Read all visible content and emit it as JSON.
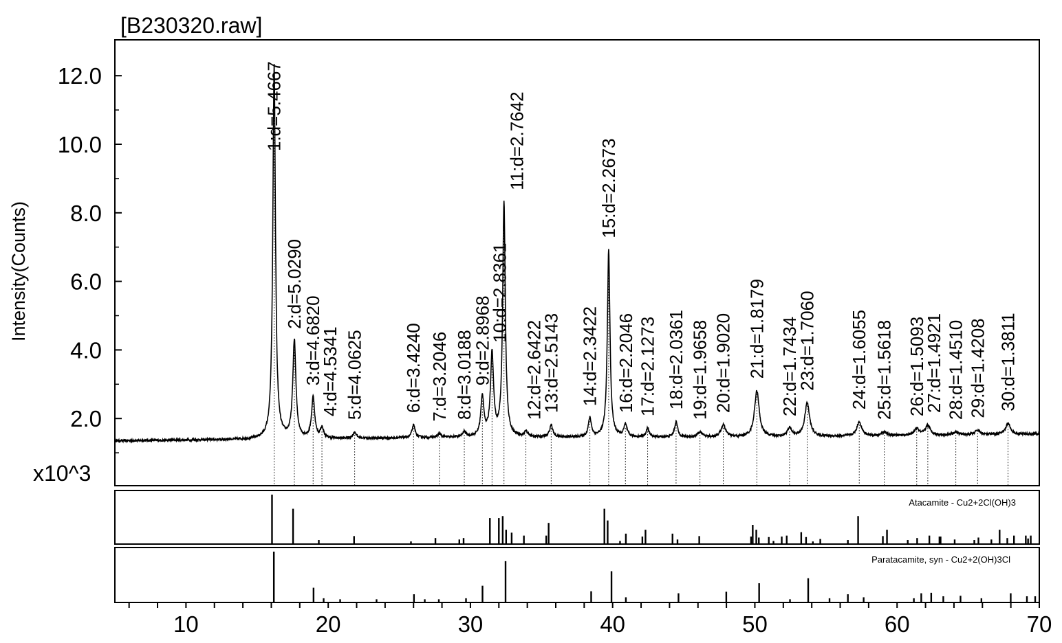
{
  "chart_data": {
    "type": "line",
    "title": "[B230320.raw]",
    "ylabel": "Intensity(Counts)",
    "y_multiplier": "x10^3",
    "xlim": [
      5,
      70
    ],
    "ylim": [
      0,
      13
    ],
    "x_ticks": [
      10,
      20,
      30,
      40,
      50,
      60,
      70
    ],
    "y_ticks": [
      "2.0",
      "4.0",
      "6.0",
      "8.0",
      "10.0",
      "12.0"
    ],
    "grid": false,
    "background": [
      [
        5,
        1.35
      ],
      [
        30,
        1.45
      ],
      [
        50,
        1.45
      ],
      [
        70,
        1.55
      ]
    ],
    "peaks": [
      {
        "label": "1:d=5.4667",
        "two_theta": 16.2,
        "intensity": 12.3
      },
      {
        "label": "2:d=5.0290",
        "two_theta": 17.62,
        "intensity": 4.25
      },
      {
        "label": "3:d=4.6820",
        "two_theta": 18.94,
        "intensity": 2.6
      },
      {
        "label": "4:d=4.5341",
        "two_theta": 19.56,
        "intensity": 1.7
      },
      {
        "label": "5:d=4.0625",
        "two_theta": 21.86,
        "intensity": 1.6
      },
      {
        "label": "6:d=3.4240",
        "two_theta": 26.0,
        "intensity": 1.8
      },
      {
        "label": "7:d=3.2046",
        "two_theta": 27.82,
        "intensity": 1.55
      },
      {
        "label": "8:d=3.0188",
        "two_theta": 29.57,
        "intensity": 1.6
      },
      {
        "label": "9:d=2.8968",
        "two_theta": 30.84,
        "intensity": 2.6
      },
      {
        "label": "10:d=2.8361",
        "two_theta": 31.52,
        "intensity": 3.85
      },
      {
        "label": "11:d=2.7642",
        "two_theta": 32.36,
        "intensity": 8.3
      },
      {
        "label": "12:d=2.6422",
        "two_theta": 33.9,
        "intensity": 1.6
      },
      {
        "label": "13:d=2.5143",
        "two_theta": 35.68,
        "intensity": 1.8
      },
      {
        "label": "14:d=2.3422",
        "two_theta": 38.4,
        "intensity": 2.0
      },
      {
        "label": "15:d=2.2673",
        "two_theta": 39.72,
        "intensity": 6.9
      },
      {
        "label": "16:d=2.2046",
        "two_theta": 40.9,
        "intensity": 1.8
      },
      {
        "label": "17:d=2.1273",
        "two_theta": 42.46,
        "intensity": 1.7
      },
      {
        "label": "18:d=2.0361",
        "two_theta": 44.46,
        "intensity": 1.9
      },
      {
        "label": "19:d=1.9658",
        "two_theta": 46.14,
        "intensity": 1.6
      },
      {
        "label": "20:d=1.9020",
        "two_theta": 47.78,
        "intensity": 1.8
      },
      {
        "label": "21:d=1.8179",
        "two_theta": 50.14,
        "intensity": 2.8
      },
      {
        "label": "22:d=1.7434",
        "two_theta": 52.44,
        "intensity": 1.7
      },
      {
        "label": "23:d=1.7060",
        "two_theta": 53.68,
        "intensity": 2.45
      },
      {
        "label": "24:d=1.6055",
        "two_theta": 57.34,
        "intensity": 1.9
      },
      {
        "label": "25:d=1.5618",
        "two_theta": 59.1,
        "intensity": 1.6
      },
      {
        "label": "26:d=1.5093",
        "two_theta": 61.38,
        "intensity": 1.7
      },
      {
        "label": "27:d=1.4921",
        "two_theta": 62.16,
        "intensity": 1.8
      },
      {
        "label": "28:d=1.4510",
        "two_theta": 64.13,
        "intensity": 1.6
      },
      {
        "label": "29:d=1.4208",
        "two_theta": 65.66,
        "intensity": 1.65
      },
      {
        "label": "30:d=1.3811",
        "two_theta": 67.8,
        "intensity": 1.85
      }
    ],
    "reference_patterns": [
      {
        "name": "Atacamite - Cu2+2Cl(OH)3",
        "sticks": [
          [
            16.05,
            100
          ],
          [
            17.53,
            71
          ],
          [
            19.34,
            7
          ],
          [
            21.82,
            15
          ],
          [
            25.82,
            4
          ],
          [
            27.54,
            11
          ],
          [
            29.22,
            8
          ],
          [
            29.52,
            11
          ],
          [
            31.37,
            52
          ],
          [
            32.0,
            52
          ],
          [
            32.27,
            56
          ],
          [
            32.51,
            28
          ],
          [
            32.9,
            22
          ],
          [
            33.76,
            16
          ],
          [
            35.33,
            16
          ],
          [
            35.5,
            42
          ],
          [
            39.42,
            71
          ],
          [
            39.65,
            47
          ],
          [
            40.52,
            5
          ],
          [
            40.93,
            20
          ],
          [
            42.09,
            14
          ],
          [
            42.31,
            28
          ],
          [
            44.21,
            20
          ],
          [
            44.56,
            8
          ],
          [
            46.09,
            15
          ],
          [
            49.73,
            14
          ],
          [
            49.85,
            38
          ],
          [
            50.1,
            28
          ],
          [
            50.28,
            12
          ],
          [
            50.98,
            13
          ],
          [
            51.31,
            5
          ],
          [
            51.89,
            14
          ],
          [
            52.24,
            16
          ],
          [
            53.26,
            23
          ],
          [
            53.6,
            13
          ],
          [
            54.08,
            4
          ],
          [
            54.6,
            9
          ],
          [
            56.54,
            7
          ],
          [
            57.26,
            56
          ],
          [
            59.0,
            15
          ],
          [
            59.29,
            28
          ],
          [
            60.75,
            7
          ],
          [
            61.41,
            11
          ],
          [
            62.27,
            16
          ],
          [
            62.98,
            14
          ],
          [
            63.06,
            14
          ],
          [
            64.05,
            8
          ],
          [
            65.43,
            7
          ],
          [
            65.72,
            12
          ],
          [
            66.63,
            8
          ],
          [
            67.21,
            28
          ],
          [
            67.75,
            11
          ],
          [
            68.22,
            16
          ],
          [
            69.05,
            16
          ],
          [
            69.21,
            10
          ],
          [
            69.4,
            16
          ]
        ]
      },
      {
        "name": "Paratacamite, syn - Cu2+2(OH)3Cl",
        "sticks": [
          [
            16.18,
            100
          ],
          [
            18.97,
            28
          ],
          [
            19.68,
            7
          ],
          [
            20.84,
            5
          ],
          [
            23.4,
            5
          ],
          [
            26.03,
            15
          ],
          [
            26.79,
            5
          ],
          [
            27.78,
            5
          ],
          [
            29.69,
            7
          ],
          [
            30.85,
            32
          ],
          [
            32.47,
            81
          ],
          [
            38.49,
            21
          ],
          [
            39.92,
            61
          ],
          [
            40.93,
            9
          ],
          [
            44.63,
            17
          ],
          [
            47.99,
            20
          ],
          [
            50.3,
            37
          ],
          [
            52.47,
            5
          ],
          [
            53.75,
            47
          ],
          [
            55.25,
            7
          ],
          [
            56.54,
            15
          ],
          [
            57.65,
            9
          ],
          [
            61.18,
            7
          ],
          [
            61.7,
            17
          ],
          [
            62.4,
            18
          ],
          [
            63.25,
            11
          ],
          [
            64.46,
            12
          ],
          [
            65.93,
            7
          ],
          [
            67.99,
            17
          ],
          [
            69.13,
            11
          ],
          [
            69.71,
            11
          ]
        ]
      }
    ]
  }
}
